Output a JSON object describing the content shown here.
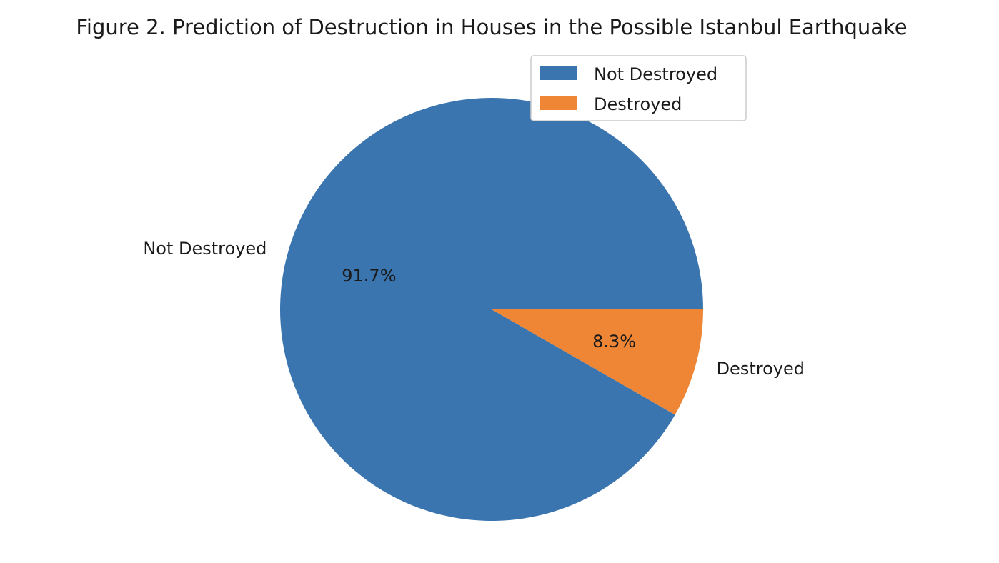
{
  "chart_data": {
    "type": "pie",
    "title": "Figure 2. Prediction of Destruction in Houses in the Possible Istanbul Earthquake",
    "categories": [
      "Not Destroyed",
      "Destroyed"
    ],
    "values": [
      91.7,
      8.3
    ],
    "value_labels": [
      "91.7%",
      "8.3%"
    ],
    "colors": [
      "#3b75af",
      "#ef8636"
    ],
    "legend": {
      "position": "upper-right",
      "entries": [
        "Not Destroyed",
        "Destroyed"
      ]
    }
  }
}
